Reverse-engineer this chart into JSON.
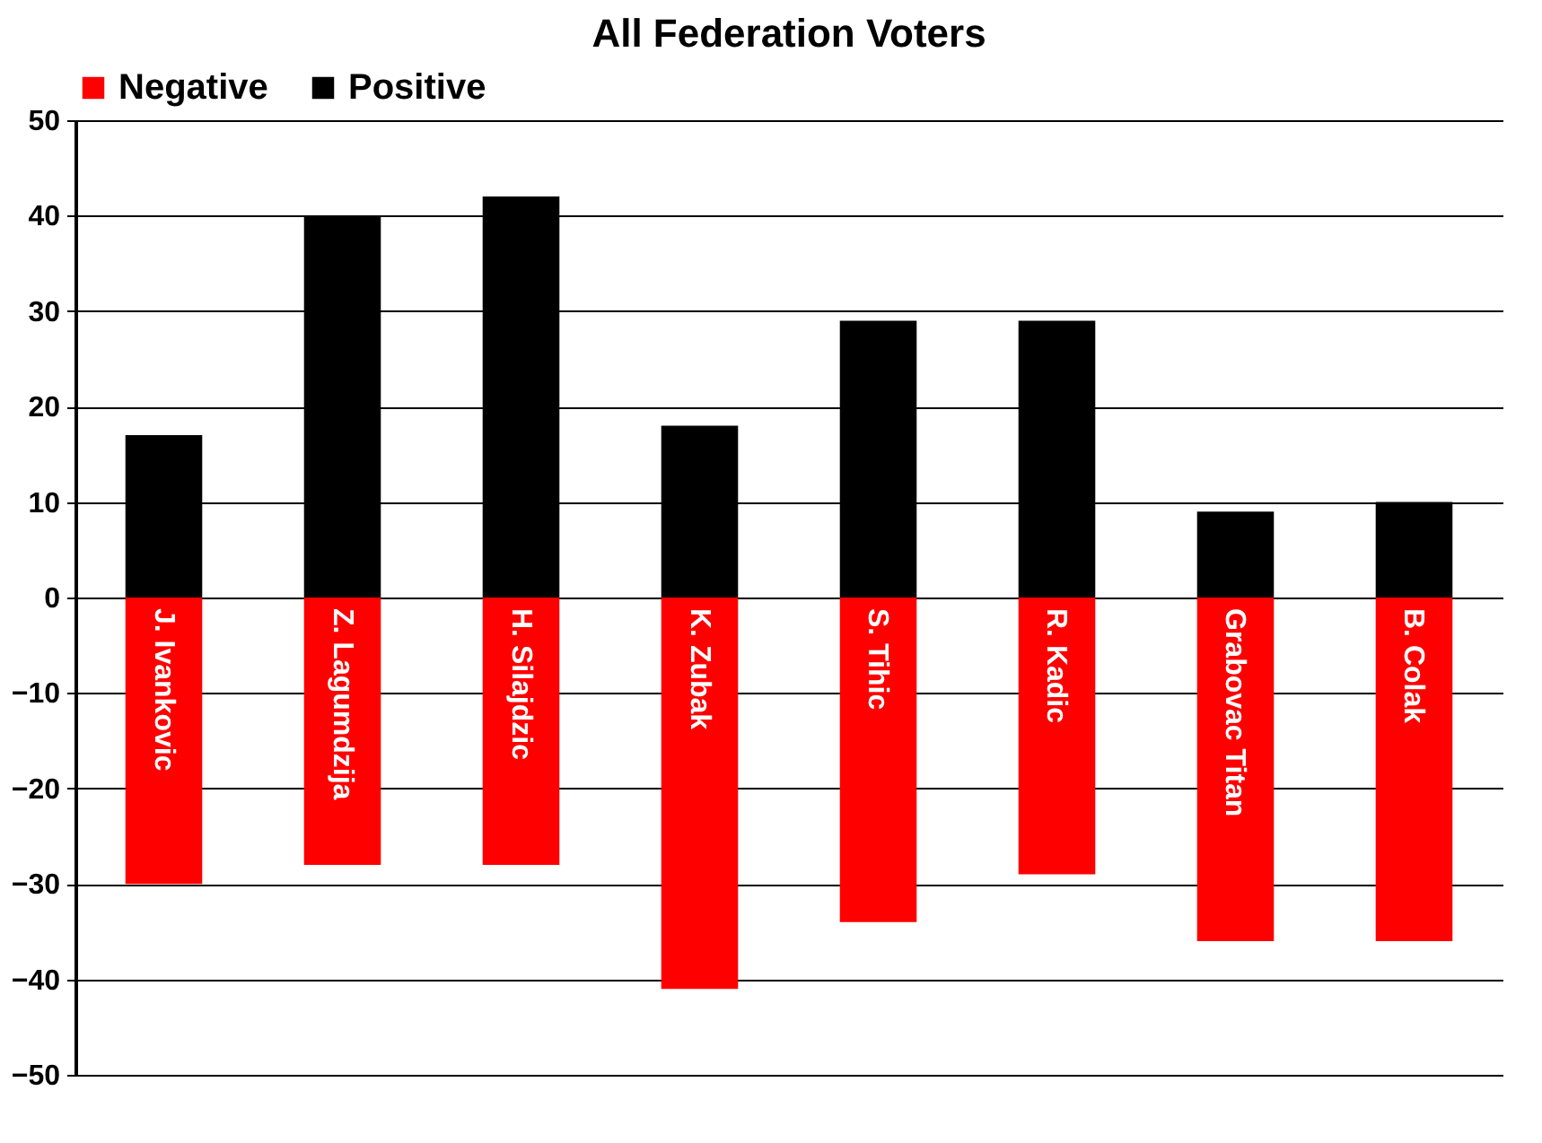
{
  "chart_data": {
    "type": "bar",
    "title": "All Federation Voters",
    "categories": [
      "J. Ivankovic",
      "Z. Lagumdzija",
      "H. Silajdzic",
      "K. Zubak",
      "S. Tihic",
      "R. Kadic",
      "Grabovac Titan",
      "B. Colak"
    ],
    "series": [
      {
        "name": "Negative",
        "color": "#ff0000",
        "values": [
          -30,
          -28,
          -28,
          -41,
          -34,
          -29,
          -36,
          -36
        ]
      },
      {
        "name": "Positive",
        "color": "#000000",
        "values": [
          17,
          40,
          42,
          18,
          29,
          29,
          9,
          10
        ]
      }
    ],
    "ylim": [
      -50,
      50
    ],
    "yticks": [
      -50,
      -40,
      -30,
      -20,
      -10,
      0,
      10,
      20,
      30,
      40,
      50
    ],
    "stacked": true,
    "grid": "y",
    "legend": "top",
    "tick_labels": "y"
  }
}
